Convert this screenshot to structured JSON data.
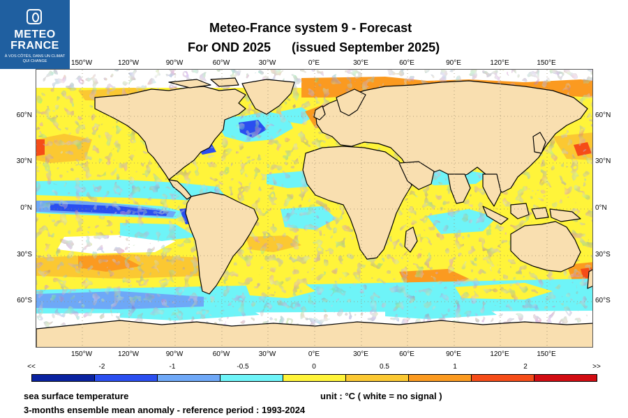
{
  "logo": {
    "name_line1": "METEO",
    "name_line2": "FRANCE",
    "tagline": "À VOS CÔTÉS, DANS UN CLIMAT QUI CHANGE"
  },
  "title": {
    "line1": "Meteo-France system 9  -  Forecast",
    "season": "For OND 2025",
    "issued": "(issued September 2025)"
  },
  "map": {
    "longitude_labels": [
      "150°W",
      "120°W",
      "90°W",
      "60°W",
      "30°W",
      "0°E",
      "30°E",
      "60°E",
      "90°E",
      "120°E",
      "150°E"
    ],
    "latitude_labels": [
      "60°N",
      "30°N",
      "0°N",
      "30°S",
      "60°S"
    ]
  },
  "legend": {
    "labels": [
      "<<",
      "-2",
      "-1",
      "-0.5",
      "0",
      "0.5",
      "1",
      "2",
      ">>"
    ],
    "colors": [
      "#0a22a0",
      "#2a4ef0",
      "#6ea8f7",
      "#6ef4f8",
      "#fff43a",
      "#fbc832",
      "#fb9a20",
      "#f54c18",
      "#d20c12"
    ]
  },
  "colors": {
    "land": "#f9dfb0",
    "no_signal": "#ffffff",
    "logo_bg": "#1f5fa0"
  },
  "footer": {
    "variable": "sea surface temperature",
    "unit": "unit : °C  ( white = no signal )",
    "description": "3-months ensemble mean anomaly - reference period : 1993-2024"
  }
}
